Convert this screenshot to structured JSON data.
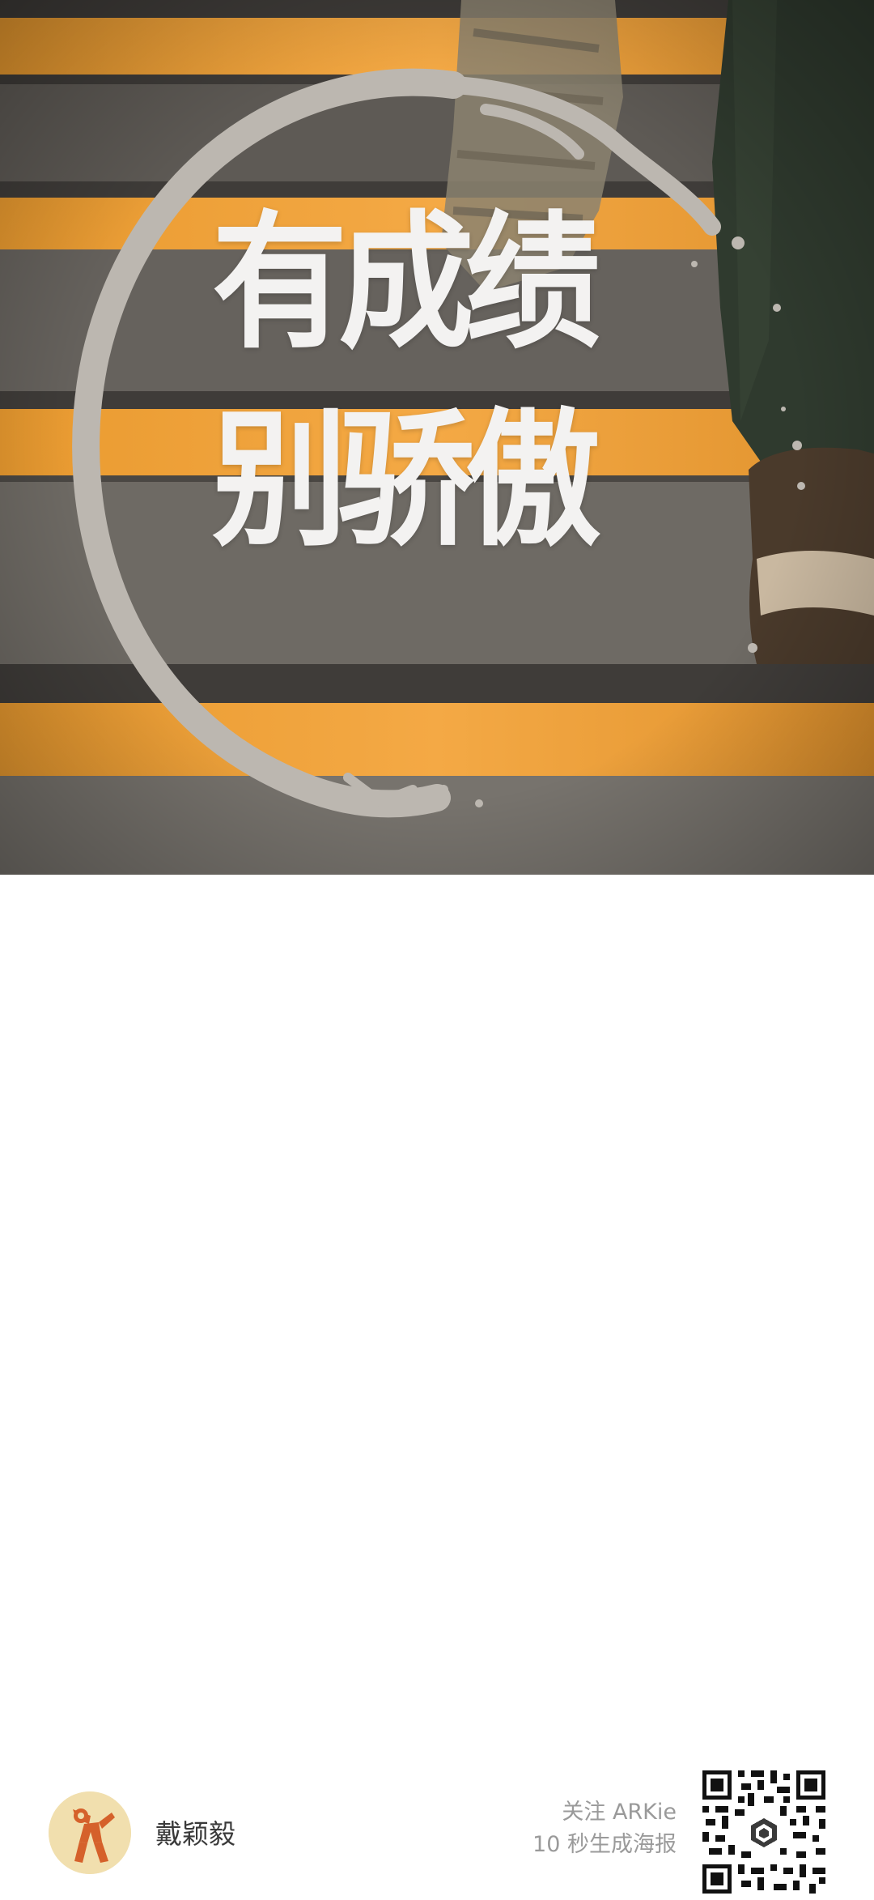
{
  "poster": {
    "headline": [
      "有成绩",
      "别骄傲"
    ],
    "colors": {
      "stripe": "#f0a23a",
      "stair": "#6b6762",
      "ring": "#bcb7b0",
      "text": "#f3f2f1"
    }
  },
  "footer": {
    "author_name": "戴颖毅",
    "promo_lines": [
      "关注 ARKie",
      "10 秒生成海报"
    ],
    "avatar_icon": "dancer-avatar-icon",
    "qr_icon": "qr-code-icon"
  }
}
